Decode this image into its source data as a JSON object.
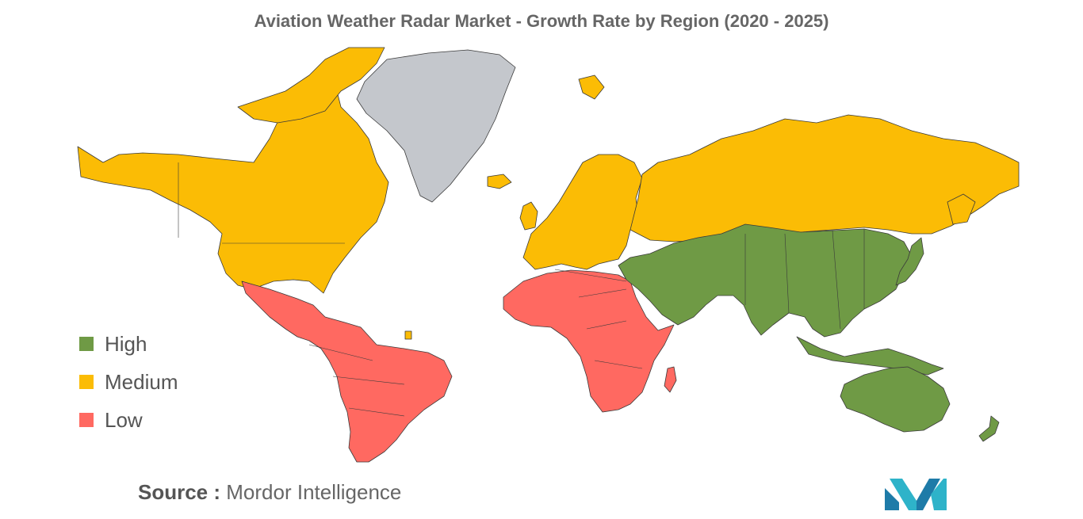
{
  "title": "Aviation Weather Radar Market - Growth Rate by Region (2020 - 2025)",
  "legend": [
    {
      "label": "High",
      "color": "#6f9a45"
    },
    {
      "label": "Medium",
      "color": "#fbbc05"
    },
    {
      "label": "Low",
      "color": "#ff6961"
    }
  ],
  "no_data_color": "#c4c7cc",
  "regions": {
    "north_america": "Medium",
    "europe": "Medium",
    "russia": "Medium",
    "greenland": "No data",
    "latin_america": "Low",
    "africa": "Low",
    "middle_east_and_asia": "High",
    "oceania": "High"
  },
  "source": {
    "label": "Source :",
    "value": "Mordor Intelligence"
  },
  "logo_icon": "mordor-intelligence-logo"
}
